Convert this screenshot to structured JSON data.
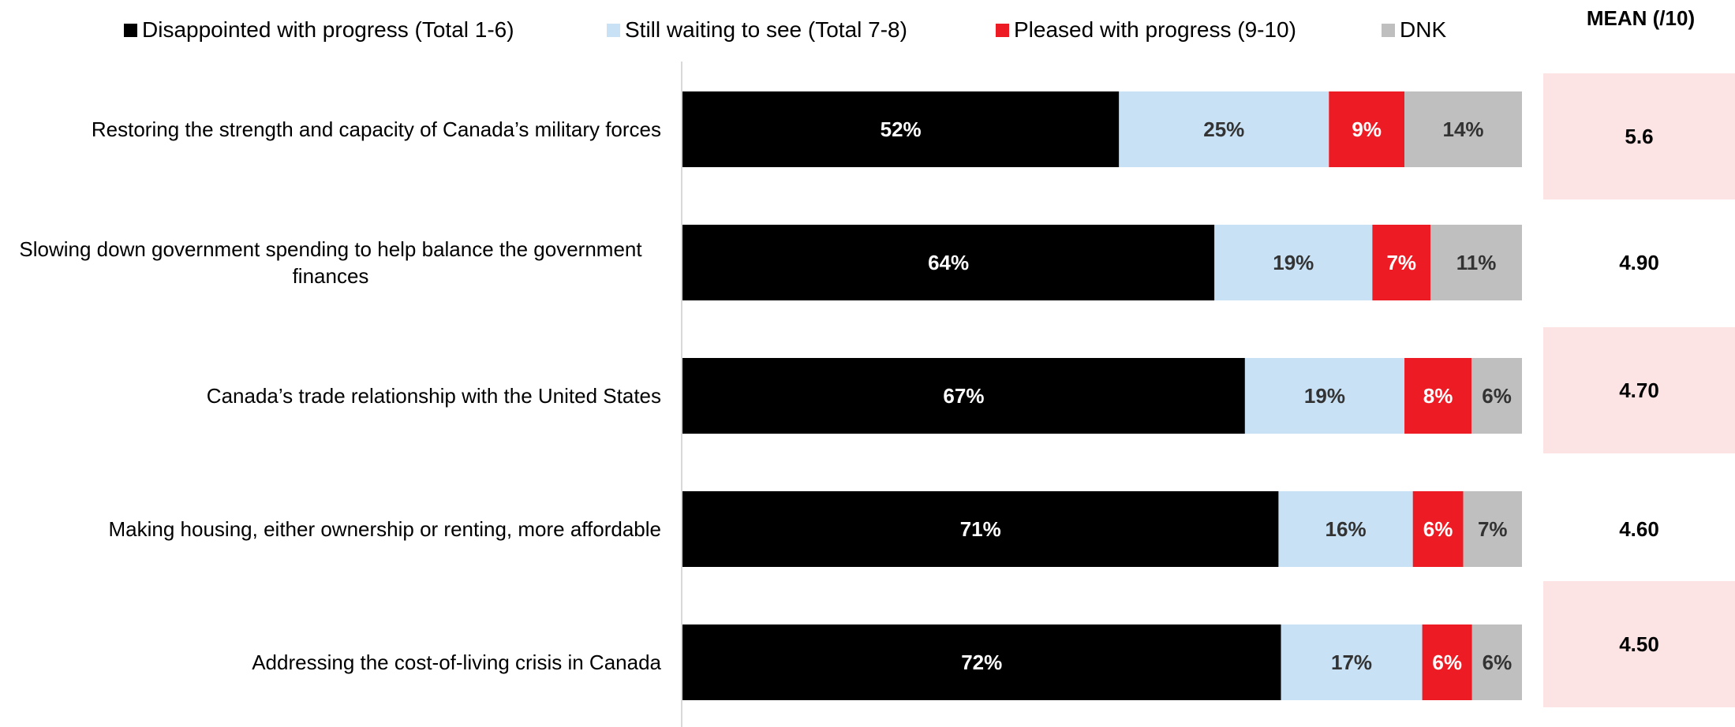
{
  "legend": [
    {
      "label": "Disappointed with progress (Total 1-6)",
      "color": "#000000"
    },
    {
      "label": "Still waiting to see (Total 7-8)",
      "color": "#c9e1f4"
    },
    {
      "label": "Pleased with progress (9-10)",
      "color": "#ed1c24"
    },
    {
      "label": "DNK",
      "color": "#bfbfbf"
    }
  ],
  "mean_header": "MEAN (/10)",
  "chart_data": {
    "type": "bar",
    "orientation": "horizontal",
    "stacked": true,
    "normalized": true,
    "categories": [
      "Restoring the strength and capacity of Canada’s military forces",
      "Slowing down government spending to help balance the government finances",
      "Canada’s trade relationship with the United States",
      "Making housing, either ownership or renting, more affordable",
      "Addressing the cost-of-living crisis in Canada"
    ],
    "series": [
      {
        "name": "Disappointed with progress (Total 1-6)",
        "color": "#000000",
        "text_color": "#ffffff",
        "values": [
          52,
          64,
          67,
          71,
          72
        ]
      },
      {
        "name": "Still waiting to see (Total 7-8)",
        "color": "#c9e1f4",
        "text_color": "#333333",
        "values": [
          25,
          19,
          19,
          16,
          17
        ]
      },
      {
        "name": "Pleased with progress (9-10)",
        "color": "#ed1c24",
        "text_color": "#ffffff",
        "values": [
          9,
          7,
          8,
          6,
          6
        ]
      },
      {
        "name": "DNK",
        "color": "#bfbfbf",
        "text_color": "#333333",
        "values": [
          14,
          11,
          6,
          7,
          6
        ]
      }
    ],
    "data_label_suffix": "%",
    "means": [
      "5.6",
      "4.90",
      "4.70",
      "4.60",
      "4.50"
    ],
    "mean_highlight_color": "#fce4e4",
    "mean_highlight_rows": [
      0,
      2,
      4
    ]
  }
}
